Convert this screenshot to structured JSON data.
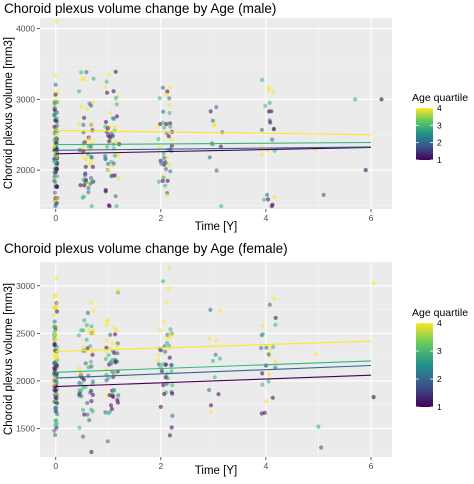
{
  "colors": {
    "panel_bg": "#ebebeb",
    "grid_major": "#ffffff",
    "q1": "#440154",
    "q2": "#31688e",
    "q3": "#35b779",
    "q4": "#fde725"
  },
  "chart_data": [
    {
      "type": "scatter",
      "title": "Choroid plexus volume change by Age (male)",
      "xlabel": "Time [Y]",
      "ylabel": "Choroid plexus volume [mm3]",
      "xlim": [
        -0.3,
        6.4
      ],
      "ylim": [
        1450,
        4150
      ],
      "x_ticks": [
        0,
        2,
        4,
        6
      ],
      "y_ticks": [
        2000,
        3000,
        4000
      ],
      "grid": true,
      "visit_times": [
        0,
        0.58,
        1.08,
        2.08,
        3.05,
        4.05
      ],
      "legend": {
        "title": "Age quartile",
        "position": "right",
        "ticks": [
          1,
          2,
          3,
          4
        ]
      },
      "series": [
        {
          "quartile": 1,
          "intercept": 2230,
          "slope": 15
        },
        {
          "quartile": 2,
          "intercept": 2280,
          "slope": 8
        },
        {
          "quartile": 3,
          "intercept": 2360,
          "slope": 5
        },
        {
          "quartile": 4,
          "intercept": 2560,
          "slope": -10
        }
      ],
      "extra_points": [
        {
          "x": 0.02,
          "y": 4100,
          "q": 4
        },
        {
          "x": 6.2,
          "y": 3000,
          "q": 1
        },
        {
          "x": 5.7,
          "y": 3000,
          "q": 3
        },
        {
          "x": 5.1,
          "y": 1650,
          "q": 2
        },
        {
          "x": 5.9,
          "y": 2000,
          "q": 1
        },
        {
          "x": 4.95,
          "y": 2300,
          "q": 4
        }
      ]
    },
    {
      "type": "scatter",
      "title": "Choroid plexus volume change by Age (female)",
      "xlabel": "Time [Y]",
      "ylabel": "Choroid plexus volume [mm3]",
      "xlim": [
        -0.3,
        6.4
      ],
      "ylim": [
        1200,
        3250
      ],
      "x_ticks": [
        0,
        2,
        4,
        6
      ],
      "y_ticks": [
        1500,
        2000,
        2500,
        3000
      ],
      "grid": true,
      "visit_times": [
        0,
        0.58,
        1.08,
        2.08,
        3.05,
        4.05
      ],
      "legend": {
        "title": "Age quartile",
        "position": "right",
        "ticks": [
          1,
          2,
          3,
          4
        ]
      },
      "series": [
        {
          "quartile": 1,
          "intercept": 1940,
          "slope": 20
        },
        {
          "quartile": 2,
          "intercept": 2030,
          "slope": 22
        },
        {
          "quartile": 3,
          "intercept": 2090,
          "slope": 20
        },
        {
          "quartile": 4,
          "intercept": 2310,
          "slope": 18
        }
      ],
      "extra_points": [
        {
          "x": 0.02,
          "y": 3080,
          "q": 4
        },
        {
          "x": 6.05,
          "y": 3030,
          "q": 4
        },
        {
          "x": 6.05,
          "y": 1830,
          "q": 1
        },
        {
          "x": 5.05,
          "y": 1300,
          "q": 2
        },
        {
          "x": 5.0,
          "y": 1520,
          "q": 3
        },
        {
          "x": 4.95,
          "y": 2280,
          "q": 4
        }
      ]
    }
  ]
}
